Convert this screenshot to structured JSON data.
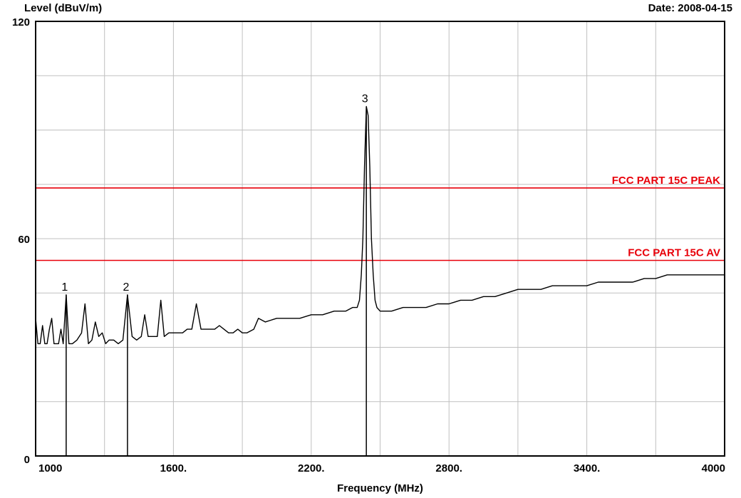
{
  "header": {
    "ylabel": "Level (dBuV/m)",
    "date_label": "Date:",
    "date_value": "2008-04-15"
  },
  "chart_data": {
    "type": "line",
    "title": "",
    "xlabel": "Frequency (MHz)",
    "ylabel": "Level (dBuV/m)",
    "xlim": [
      1000,
      4000
    ],
    "ylim": [
      0,
      120
    ],
    "x_ticks": [
      {
        "value": 1000,
        "label": "1000"
      },
      {
        "value": 1600,
        "label": "1600."
      },
      {
        "value": 2200,
        "label": "2200."
      },
      {
        "value": 2800,
        "label": "2800."
      },
      {
        "value": 3400,
        "label": "3400."
      },
      {
        "value": 4000,
        "label": "4000"
      }
    ],
    "y_ticks": [
      {
        "value": 0,
        "label": "0"
      },
      {
        "value": 60,
        "label": "60"
      },
      {
        "value": 120,
        "label": "120"
      }
    ],
    "grid": true,
    "colors": {
      "trace": "#000000",
      "limit": "#e8000a",
      "grid": "#c0c0c0",
      "frame": "#000000"
    },
    "limit_lines": [
      {
        "name": "FCC PART 15C  PEAK",
        "value": 74
      },
      {
        "name": "FCC PART 15C AV",
        "value": 54
      }
    ],
    "markers": [
      {
        "label": "1",
        "x": 1133,
        "y": 44.5
      },
      {
        "label": "2",
        "x": 1400,
        "y": 44.5
      },
      {
        "label": "3",
        "x": 2440,
        "y": 96.5
      }
    ],
    "series": [
      {
        "x": [
          1000,
          1010,
          1020,
          1030,
          1040,
          1050,
          1060,
          1070,
          1080,
          1090,
          1100,
          1110,
          1120,
          1133,
          1145,
          1160,
          1180,
          1200,
          1215,
          1230,
          1245,
          1260,
          1275,
          1290,
          1305,
          1320,
          1340,
          1360,
          1380,
          1400,
          1420,
          1440,
          1460,
          1475,
          1490,
          1510,
          1530,
          1545,
          1560,
          1580,
          1600,
          1620,
          1640,
          1660,
          1680,
          1700,
          1720,
          1740,
          1760,
          1780,
          1800,
          1820,
          1840,
          1860,
          1880,
          1900,
          1920,
          1950,
          1970,
          2000,
          2050,
          2100,
          2150,
          2200,
          2250,
          2300,
          2350,
          2380,
          2400,
          2410,
          2418,
          2425,
          2432,
          2440,
          2448,
          2455,
          2462,
          2470,
          2478,
          2486,
          2500,
          2550,
          2600,
          2650,
          2700,
          2750,
          2800,
          2850,
          2900,
          2950,
          3000,
          3050,
          3100,
          3150,
          3200,
          3250,
          3300,
          3350,
          3400,
          3450,
          3500,
          3550,
          3600,
          3650,
          3700,
          3750,
          3800,
          3850,
          3900,
          3950,
          4000
        ],
        "y": [
          38,
          31,
          31,
          36,
          31,
          31,
          35,
          38,
          31,
          31,
          31,
          35,
          31,
          44.5,
          31,
          31,
          32,
          34,
          42,
          31,
          32,
          37,
          33,
          34,
          31,
          32,
          32,
          31,
          32,
          44.5,
          33,
          32,
          33,
          39,
          33,
          33,
          33,
          43,
          33,
          34,
          34,
          34,
          34,
          35,
          35,
          42,
          35,
          35,
          35,
          35,
          36,
          35,
          34,
          34,
          35,
          34,
          34,
          35,
          38,
          37,
          38,
          38,
          38,
          39,
          39,
          40,
          40,
          41,
          41,
          43,
          50,
          60,
          80,
          96.5,
          94,
          80,
          60,
          50,
          43,
          41,
          40,
          40,
          41,
          41,
          41,
          42,
          42,
          43,
          43,
          44,
          44,
          45,
          46,
          46,
          46,
          47,
          47,
          47,
          47,
          48,
          48,
          48,
          48,
          49,
          49,
          50,
          50,
          50,
          50,
          50,
          50
        ]
      }
    ]
  }
}
